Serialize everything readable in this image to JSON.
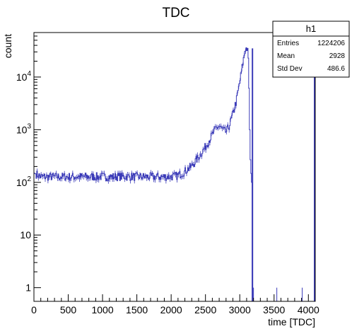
{
  "chart_data": {
    "type": "histogram",
    "title": "TDC",
    "xlabel": "time [TDC]",
    "ylabel": "count",
    "xlim": [
      0,
      4100
    ],
    "ylim": [
      0.55,
      70000
    ],
    "log_y": true,
    "grid": false,
    "line_color": "#3a3ab8",
    "x_ticks": [
      0,
      500,
      1000,
      1500,
      2000,
      2500,
      3000,
      3500,
      4000
    ],
    "y_ticks": [
      {
        "value": 1,
        "label": "1"
      },
      {
        "value": 10,
        "label": "10"
      },
      {
        "value": 100,
        "label": "10^2"
      },
      {
        "value": 1000,
        "label": "10^3"
      },
      {
        "value": 10000,
        "label": "10^4"
      }
    ],
    "shape_points": [
      [
        0,
        1
      ],
      [
        5,
        150
      ],
      [
        100,
        128
      ],
      [
        500,
        128
      ],
      [
        1000,
        128
      ],
      [
        1500,
        128
      ],
      [
        2000,
        128
      ],
      [
        2100,
        135
      ],
      [
        2200,
        160
      ],
      [
        2300,
        205
      ],
      [
        2400,
        300
      ],
      [
        2500,
        470
      ],
      [
        2600,
        800
      ],
      [
        2650,
        1050
      ],
      [
        2700,
        1170
      ],
      [
        2750,
        1000
      ],
      [
        2800,
        900
      ],
      [
        2850,
        1200
      ],
      [
        2900,
        2000
      ],
      [
        2950,
        3500
      ],
      [
        3000,
        8000
      ],
      [
        3050,
        20000
      ],
      [
        3080,
        35000
      ],
      [
        3120,
        35000
      ],
      [
        3130,
        15000
      ],
      [
        3140,
        2500
      ],
      [
        3150,
        400
      ],
      [
        3160,
        180
      ],
      [
        3175,
        100
      ],
      [
        3185,
        35000
      ],
      [
        3190,
        20
      ],
      [
        3200,
        1
      ],
      [
        3500,
        1
      ],
      [
        3550,
        1
      ],
      [
        3900,
        1
      ],
      [
        4080,
        1
      ],
      [
        4090,
        30000
      ],
      [
        4095,
        1
      ]
    ],
    "spikes": [
      {
        "x": 3185,
        "y": 35000
      },
      {
        "x": 4090,
        "y": 30000
      }
    ],
    "isolated_counts": [
      {
        "x": 3200,
        "y": 1
      },
      {
        "x": 3540,
        "y": 1
      },
      {
        "x": 3910,
        "y": 1
      }
    ]
  },
  "stats_box": {
    "name": "h1",
    "rows": [
      {
        "label": "Entries",
        "value": "1224206"
      },
      {
        "label": "Mean",
        "value": "2928"
      },
      {
        "label": "Std Dev",
        "value": "486.6"
      }
    ]
  }
}
